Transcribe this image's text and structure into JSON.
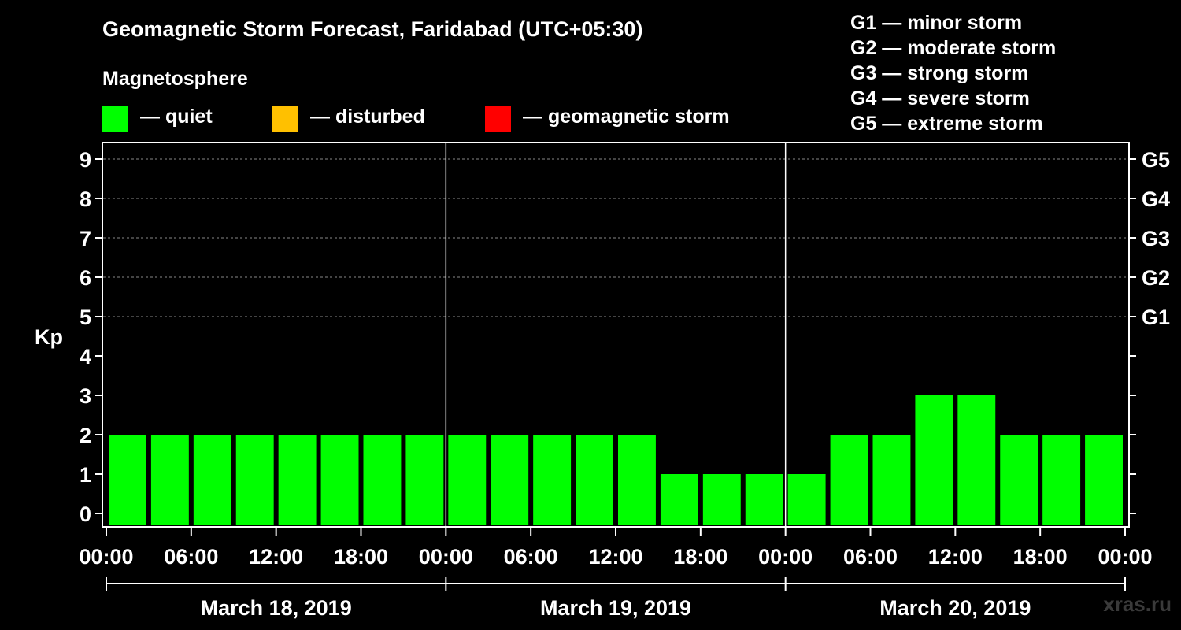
{
  "title": "Geomagnetic Storm Forecast, Faridabad (UTC+05:30)",
  "subtitle": "Magnetosphere",
  "legend": [
    {
      "label": "— quiet",
      "color": "#00ff00"
    },
    {
      "label": "— disturbed",
      "color": "#ffc000"
    },
    {
      "label": "— geomagnetic storm",
      "color": "#ff0000"
    }
  ],
  "storm_levels": [
    "G1 — minor storm",
    "G2 — moderate storm",
    "G3 — strong storm",
    "G4 — severe storm",
    "G5 — extreme storm"
  ],
  "watermark": "xras.ru",
  "chart_data": {
    "type": "bar",
    "ylabel": "Kp",
    "ylim": [
      0,
      9
    ],
    "yticks": [
      "0",
      "1",
      "2",
      "3",
      "4",
      "5",
      "6",
      "7",
      "8",
      "9"
    ],
    "right_ticks": [
      {
        "kp": 5,
        "label": "G1"
      },
      {
        "kp": 6,
        "label": "G2"
      },
      {
        "kp": 7,
        "label": "G3"
      },
      {
        "kp": 8,
        "label": "G4"
      },
      {
        "kp": 9,
        "label": "G5"
      }
    ],
    "xtick_labels": [
      "00:00",
      "06:00",
      "12:00",
      "18:00",
      "00:00",
      "06:00",
      "12:00",
      "18:00",
      "00:00",
      "06:00",
      "12:00",
      "18:00",
      "00:00"
    ],
    "days": [
      "March 18, 2019",
      "March 19, 2019",
      "March 20, 2019"
    ],
    "interval_hours": 3,
    "values": [
      2,
      2,
      2,
      2,
      2,
      2,
      2,
      2,
      2,
      2,
      2,
      2,
      2,
      1,
      1,
      1,
      1,
      2,
      2,
      3,
      3,
      2,
      2,
      2
    ],
    "bar_color": "#00ff00",
    "grid": "dashed at Kp 5-9"
  }
}
